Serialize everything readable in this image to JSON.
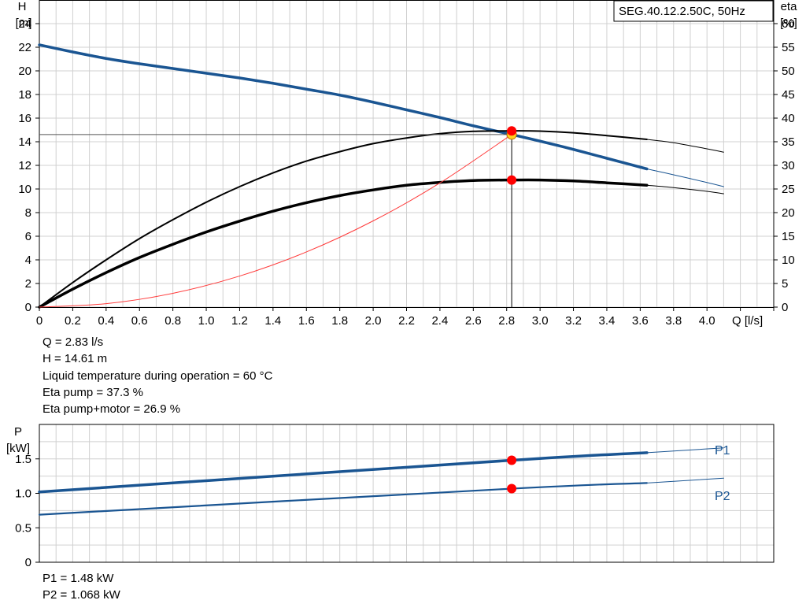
{
  "colors": {
    "pump_curve": "#1a5592",
    "power": "#1a5592",
    "eta": "#000000",
    "system": "#ff3b3b",
    "marker": "#ff0000",
    "marker_h": "#ffd21f",
    "grid": "#d0d0d0"
  },
  "chart_data": [
    {
      "type": "line",
      "title": "SEG.40.12.2.50C, 50Hz",
      "xlabel": "Q [l/s]",
      "ylabel_left": [
        "H",
        "[m]"
      ],
      "ylabel_right": [
        "eta",
        "[%]"
      ],
      "xlim": [
        0,
        4.4
      ],
      "ylim": [
        0,
        26
      ],
      "ylim_right": [
        0,
        65
      ],
      "x_ticks": [
        "0",
        "0.2",
        "0.4",
        "0.6",
        "0.8",
        "1.0",
        "1.2",
        "1.4",
        "1.6",
        "1.8",
        "2.0",
        "2.2",
        "2.4",
        "2.6",
        "2.8",
        "3.0",
        "3.2",
        "3.4",
        "3.6",
        "3.8",
        "4.0"
      ],
      "y_ticks": [
        "0",
        "2",
        "4",
        "6",
        "8",
        "10",
        "12",
        "14",
        "16",
        "18",
        "20",
        "22",
        "24"
      ],
      "y_ticks_right": [
        "0",
        "5",
        "10",
        "15",
        "20",
        "25",
        "30",
        "35",
        "40",
        "45",
        "50",
        "55",
        "60"
      ],
      "grid": true,
      "series": [
        {
          "axis": "left",
          "role": "head",
          "x": [
            0,
            0.2,
            0.4,
            0.6,
            0.8,
            1.0,
            1.2,
            1.4,
            1.6,
            1.8,
            2.0,
            2.2,
            2.4,
            2.6,
            2.83,
            3.0,
            3.2,
            3.4,
            3.64
          ],
          "values": [
            22.2,
            21.6,
            21.05,
            20.6,
            20.2,
            19.8,
            19.4,
            18.95,
            18.45,
            17.95,
            17.35,
            16.7,
            16.05,
            15.35,
            14.61,
            14.05,
            13.35,
            12.6,
            11.7
          ]
        },
        {
          "axis": "left",
          "role": "head-extension",
          "x": [
            3.64,
            3.8,
            4.0,
            4.1
          ],
          "values": [
            11.7,
            11.2,
            10.55,
            10.2
          ]
        },
        {
          "axis": "right",
          "role": "eta-pump",
          "x": [
            0,
            0.2,
            0.4,
            0.6,
            0.8,
            1.0,
            1.2,
            1.4,
            1.6,
            1.8,
            2.0,
            2.2,
            2.4,
            2.6,
            2.83,
            3.0,
            3.2,
            3.4,
            3.64
          ],
          "values": [
            0,
            5.2,
            10,
            14.5,
            18.5,
            22.2,
            25.5,
            28.4,
            30.9,
            32.9,
            34.6,
            35.8,
            36.7,
            37.2,
            37.3,
            37.25,
            36.9,
            36.3,
            35.5
          ]
        },
        {
          "axis": "right",
          "role": "eta-pump-extension",
          "x": [
            3.64,
            3.8,
            4.0,
            4.1
          ],
          "values": [
            35.5,
            34.8,
            33.5,
            32.8
          ]
        },
        {
          "axis": "right",
          "role": "eta-pump-motor",
          "x": [
            0,
            0.2,
            0.4,
            0.6,
            0.8,
            1.0,
            1.2,
            1.4,
            1.6,
            1.8,
            2.0,
            2.2,
            2.4,
            2.6,
            2.83,
            3.0,
            3.2,
            3.4,
            3.64
          ],
          "values": [
            0,
            3.8,
            7.3,
            10.5,
            13.3,
            15.9,
            18.2,
            20.3,
            22.1,
            23.6,
            24.8,
            25.8,
            26.4,
            26.8,
            26.9,
            26.9,
            26.7,
            26.3,
            25.8
          ]
        },
        {
          "axis": "right",
          "role": "eta-pump-motor-extension",
          "x": [
            3.64,
            3.8,
            4.0,
            4.1
          ],
          "values": [
            25.8,
            25.3,
            24.5,
            24.0
          ]
        },
        {
          "axis": "left",
          "role": "system-curve",
          "x": [
            0,
            0.4,
            0.8,
            1.2,
            1.6,
            2.0,
            2.4,
            2.83
          ],
          "values": [
            0,
            0.29,
            1.17,
            2.63,
            4.67,
            7.3,
            10.51,
            14.61
          ]
        }
      ],
      "operating_point": {
        "Q": 2.83,
        "H": 14.61,
        "eta_pump": 37.3,
        "eta_pump_motor": 26.9
      }
    },
    {
      "type": "line",
      "ylabel": [
        "P",
        "[kW]"
      ],
      "xlim": [
        0,
        4.4
      ],
      "ylim": [
        0,
        2.0
      ],
      "y_ticks": [
        "0",
        "0.5",
        "1.0",
        "1.5"
      ],
      "grid": true,
      "series": [
        {
          "name": "P1",
          "x": [
            0,
            2.83,
            3.64
          ],
          "values": [
            1.02,
            1.48,
            1.59
          ]
        },
        {
          "name": "P1",
          "role": "extension",
          "x": [
            3.64,
            4.1
          ],
          "values": [
            1.59,
            1.66
          ]
        },
        {
          "name": "P2",
          "x": [
            0,
            2.83,
            3.64
          ],
          "values": [
            0.69,
            1.068,
            1.15
          ]
        },
        {
          "name": "P2",
          "role": "extension",
          "x": [
            3.64,
            4.1
          ],
          "values": [
            1.15,
            1.22
          ]
        }
      ],
      "operating_point": {
        "Q": 2.83,
        "P1": 1.48,
        "P2": 1.068
      }
    }
  ],
  "info_top": [
    "Q = 2.83 l/s",
    "H = 14.61 m",
    "Liquid temperature during operation = 60 °C",
    "Eta pump = 37.3 %",
    "Eta pump+motor = 26.9 %"
  ],
  "info_bottom": [
    "P1 = 1.48 kW",
    "P2 = 1.068 kW"
  ]
}
